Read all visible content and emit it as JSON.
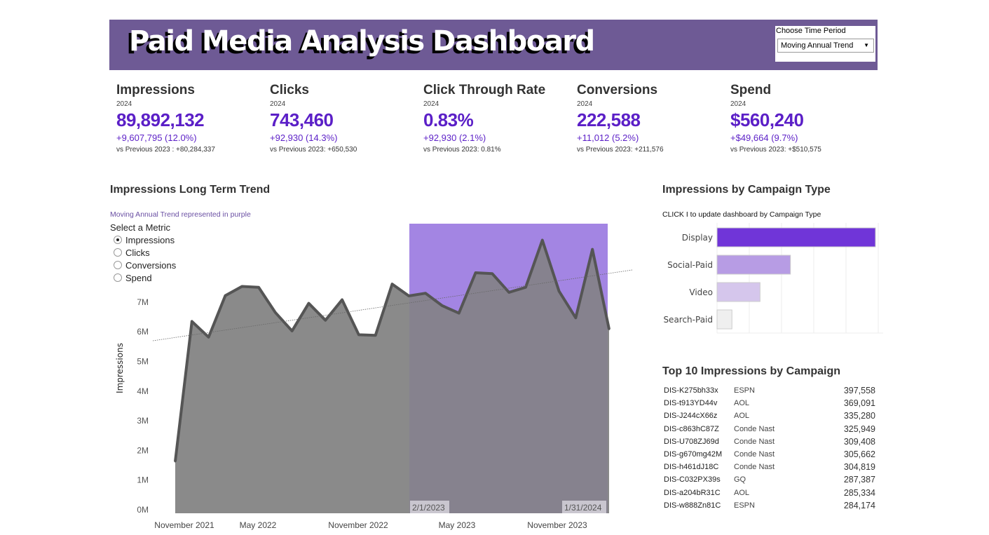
{
  "header": {
    "title": "Paid Media Analysis Dashboard",
    "period_label": "Choose Time Period",
    "period_value": "Moving Annual Trend",
    "colors": {
      "banner": "#6e5a95"
    }
  },
  "kpis": [
    {
      "title": "Impressions",
      "year": "2024",
      "value": "89,892,132",
      "delta": "+9,607,795 (12.0%)",
      "prev": "vs Previous 2023 : +80,284,337"
    },
    {
      "title": "Clicks",
      "year": "2024",
      "value": "743,460",
      "delta": "+92,930 (14.3%)",
      "prev": "vs Previous 2023: +650,530"
    },
    {
      "title": "Click Through Rate",
      "year": "2024",
      "value": "0.83%",
      "delta": "+92,930 (2.1%)",
      "prev": "vs Previous 2023: 0.81%"
    },
    {
      "title": "Conversions",
      "year": "2024",
      "value": "222,588",
      "delta": "+11,012 (5.2%)",
      "prev": "vs Previous 2023: +211,576"
    },
    {
      "title": "Spend",
      "year": "2024",
      "value": "$560,240",
      "delta": "+$49,664 (9.7%)",
      "prev": "vs Previous 2023: +$510,575"
    }
  ],
  "trend": {
    "title": "Impressions Long Term Trend",
    "note": "Moving Annual Trend represented in purple",
    "metric_label": "Select a Metric",
    "metrics": [
      {
        "label": "Impressions",
        "selected": true
      },
      {
        "label": "Clicks",
        "selected": false
      },
      {
        "label": "Conversions",
        "selected": false
      },
      {
        "label": "Spend",
        "selected": false
      }
    ],
    "highlight_start": "2/1/2023",
    "highlight_end": "1/31/2024"
  },
  "campaign_type": {
    "title": "Impressions by Campaign Type",
    "note": "CLICK I to update dashboard by Campaign Type"
  },
  "top10": {
    "title": "Top 10 Impressions by Campaign",
    "rows": [
      [
        "DIS-K275bh33x",
        "ESPN",
        "397,558"
      ],
      [
        "DIS-t913YD44v",
        "AOL",
        "369,091"
      ],
      [
        "DIS-J244cX66z",
        "AOL",
        "335,280"
      ],
      [
        "DIS-c863hC87Z",
        "Conde Nast",
        "325,949"
      ],
      [
        "DIS-U708ZJ69d",
        "Conde Nast",
        "309,408"
      ],
      [
        "DIS-g670mg42M",
        "Conde Nast",
        "305,662"
      ],
      [
        "DIS-h461dJ18C",
        "Conde Nast",
        "304,819"
      ],
      [
        "DIS-C032PX39s",
        "GQ",
        "287,387"
      ],
      [
        "DIS-a204bR31C",
        "AOL",
        "285,334"
      ],
      [
        "DIS-w888Zn81C",
        "ESPN",
        "284,174"
      ]
    ]
  },
  "chart_data": [
    {
      "type": "area",
      "ylabel": "Impressions",
      "yticks": [
        "0M",
        "1M",
        "2M",
        "3M",
        "4M",
        "5M",
        "6M",
        "7M"
      ],
      "ylim": [
        0,
        9.6
      ],
      "xticks": [
        "November 2021",
        "May 2022",
        "November 2022",
        "May 2023",
        "November 2023"
      ],
      "trendline": true,
      "highlight_color": "#a385e3",
      "fill_color": "#8a8a8a",
      "line_color": "#555555",
      "x": [
        "2021-12",
        "2022-01",
        "2022-02",
        "2022-03",
        "2022-04",
        "2022-05",
        "2022-06",
        "2022-07",
        "2022-08",
        "2022-09",
        "2022-10",
        "2022-11",
        "2022-12",
        "2023-01",
        "2023-02",
        "2023-03",
        "2023-04",
        "2023-05",
        "2023-06",
        "2023-07",
        "2023-08",
        "2023-09",
        "2023-10",
        "2023-11",
        "2023-12",
        "2024-01",
        "2024-02"
      ],
      "values": [
        1.63,
        6.35,
        5.82,
        7.22,
        7.53,
        7.5,
        6.65,
        6.03,
        6.96,
        6.39,
        7.08,
        5.9,
        5.88,
        7.61,
        7.21,
        7.3,
        6.88,
        6.63,
        7.99,
        7.96,
        7.33,
        7.5,
        9.09,
        7.37,
        6.47,
        8.78,
        6.09
      ]
    },
    {
      "type": "bar",
      "categories": [
        "Display",
        "Social-Paid",
        "Video",
        "Search-Paid"
      ],
      "values": [
        49,
        22.7,
        13.3,
        4.6
      ],
      "colors": [
        "#7035d8",
        "#b79ce4",
        "#d5c6ec",
        "#efefef"
      ]
    }
  ]
}
